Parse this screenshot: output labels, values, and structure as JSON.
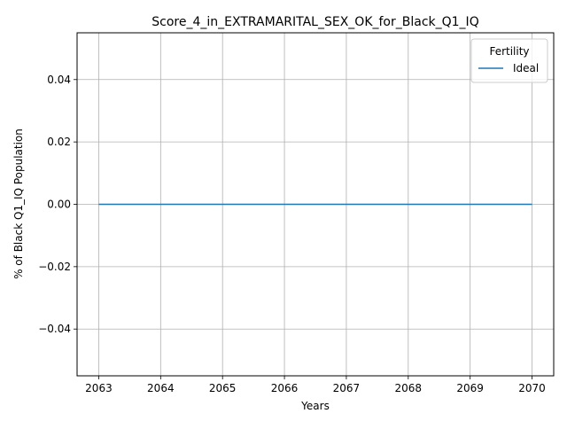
{
  "chart_data": {
    "type": "line",
    "title": "Score_4_in_EXTRAMARITAL_SEX_OK_for_Black_Q1_IQ",
    "xlabel": "Years",
    "ylabel": "% of Black Q1_IQ Population",
    "x": [
      2063,
      2064,
      2065,
      2066,
      2067,
      2068,
      2069,
      2070
    ],
    "xlim": [
      2062.65,
      2070.35
    ],
    "ylim": [
      -0.055,
      0.055
    ],
    "yticks": [
      -0.04,
      -0.02,
      0.0,
      0.02,
      0.04
    ],
    "ytick_labels": [
      "−0.04",
      "−0.02",
      "0.00",
      "0.02",
      "0.04"
    ],
    "xtick_labels": [
      "2063",
      "2064",
      "2065",
      "2066",
      "2067",
      "2068",
      "2069",
      "2070"
    ],
    "grid": true,
    "legend": {
      "title": "Fertility",
      "placement": "top-right"
    },
    "series": [
      {
        "name": "Ideal",
        "color": "#1f77b4",
        "values": [
          0,
          0,
          0,
          0,
          0,
          0,
          0,
          0
        ]
      }
    ]
  }
}
